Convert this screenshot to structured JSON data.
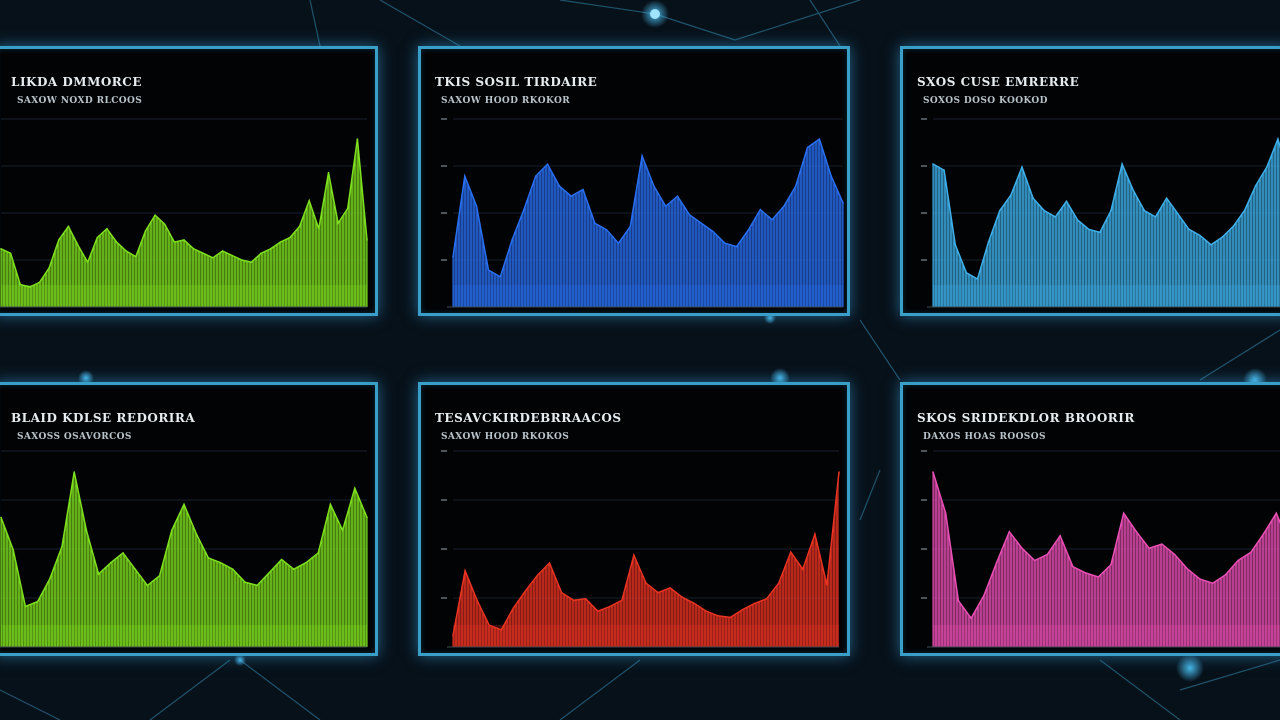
{
  "chart_data": [
    {
      "type": "area",
      "title": "LIKDA DMMORCE",
      "subtitle": "SAXOW NOXD RLCOOS",
      "color": "#7fe01e",
      "values": [
        52,
        48,
        20,
        18,
        22,
        35,
        60,
        72,
        55,
        40,
        62,
        70,
        58,
        50,
        45,
        68,
        82,
        74,
        58,
        60,
        52,
        48,
        44,
        50,
        46,
        42,
        40,
        48,
        52,
        58,
        62,
        72,
        95,
        70,
        120,
        75,
        88,
        150,
        60
      ]
    },
    {
      "type": "area",
      "title": "TKIS SOSIL TIRDAIRE",
      "subtitle": "SAXOW HOOD RKOKOR",
      "color": "#2a6ff2",
      "values": [
        30,
        78,
        60,
        22,
        18,
        40,
        58,
        78,
        85,
        72,
        66,
        70,
        50,
        46,
        38,
        48,
        90,
        72,
        60,
        66,
        55,
        50,
        45,
        38,
        36,
        46,
        58,
        52,
        60,
        72,
        95,
        100,
        78,
        62
      ]
    },
    {
      "type": "area",
      "title": "SXOS CUSE EMRERRE",
      "subtitle": "SOXOS DOSO KOOKOD",
      "color": "#3fb0ea",
      "values": [
        92,
        88,
        40,
        22,
        18,
        42,
        62,
        72,
        90,
        70,
        62,
        58,
        68,
        56,
        50,
        48,
        62,
        92,
        75,
        62,
        58,
        70,
        60,
        50,
        46,
        40,
        45,
        52,
        62,
        78,
        90,
        108,
        84
      ]
    },
    {
      "type": "area",
      "title": "BLAID KDLSE REDORIRA",
      "subtitle": "SAXOSS OSAVORCOS",
      "color": "#7fe01e",
      "values": [
        80,
        60,
        25,
        28,
        42,
        62,
        108,
        72,
        45,
        52,
        58,
        48,
        38,
        44,
        72,
        88,
        70,
        55,
        52,
        48,
        40,
        38,
        46,
        54,
        48,
        52,
        58,
        88,
        72,
        98,
        80
      ]
    },
    {
      "type": "area",
      "title": "TESAVCKIRDEBRRAACOS",
      "subtitle": "SAXOW HOOD RKOKOS",
      "color": "#ea3322",
      "values": [
        15,
        98,
        60,
        28,
        22,
        50,
        72,
        92,
        108,
        70,
        60,
        62,
        46,
        52,
        60,
        118,
        82,
        70,
        76,
        64,
        56,
        46,
        40,
        38,
        48,
        56,
        62,
        82,
        122,
        100,
        145,
        80,
        225
      ]
    },
    {
      "type": "area",
      "title": "SKOS SRIDEKDLOR BROORIR",
      "subtitle": "DAXOS HOAS ROOSOS",
      "color": "#ea4fb4",
      "values": [
        170,
        130,
        45,
        28,
        50,
        82,
        112,
        96,
        84,
        90,
        108,
        78,
        72,
        68,
        80,
        130,
        112,
        96,
        100,
        90,
        76,
        66,
        62,
        70,
        84,
        92,
        110,
        130,
        100
      ]
    }
  ]
}
